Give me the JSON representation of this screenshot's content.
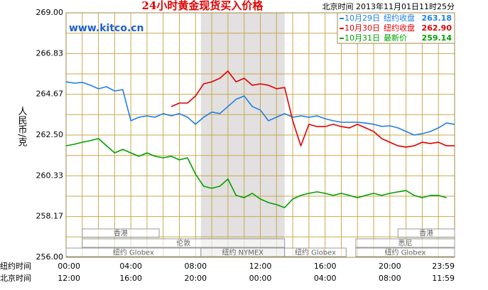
{
  "chart_data": {
    "type": "line",
    "title": "24小时黄金现货买入价格",
    "timestamp": "北京时间 2013年11月01日11时25分",
    "watermark": "www.kitco.cn",
    "y_label": "人民币/克",
    "x_row_labels": [
      "纽约时间",
      "北京时间"
    ],
    "x": [
      0,
      0.5,
      1,
      1.5,
      2,
      2.5,
      3,
      3.5,
      4,
      4.5,
      5,
      5.5,
      6,
      6.5,
      7,
      7.5,
      8,
      8.5,
      9,
      9.5,
      10,
      10.5,
      11,
      11.5,
      12,
      12.5,
      13,
      13.5,
      14,
      14.5,
      15,
      15.5,
      16,
      16.5,
      17,
      17.5,
      18,
      18.5,
      19,
      19.5,
      20,
      20.5,
      21,
      21.5,
      22,
      22.5,
      23,
      23.5,
      24
    ],
    "series": [
      {
        "name": "10月29日",
        "legend_label": "纽约收盘",
        "close": {
          "value": 263.18,
          "label": "263.18"
        },
        "color": "#1e7fe6",
        "values": [
          265.33,
          265.26,
          265.3,
          265.15,
          264.96,
          265.07,
          264.84,
          264.92,
          263.26,
          263.45,
          263.52,
          263.45,
          263.64,
          263.52,
          263.64,
          263.45,
          263.07,
          263.45,
          263.72,
          263.64,
          264.02,
          264.4,
          264.58,
          264.02,
          263.83,
          263.26,
          263.45,
          263.64,
          263.45,
          263.52,
          263.45,
          263.52,
          263.37,
          263.26,
          263.18,
          263.18,
          263.18,
          263.14,
          263.07,
          262.96,
          262.99,
          262.88,
          262.69,
          262.5,
          262.57,
          262.69,
          262.88,
          263.14,
          263.07
        ]
      },
      {
        "name": "10月30日",
        "legend_label": "纽约收盘",
        "close": {
          "value": 262.9,
          "label": "262.90"
        },
        "color": "#e00000",
        "values": [
          null,
          null,
          null,
          null,
          null,
          null,
          null,
          null,
          null,
          null,
          null,
          null,
          null,
          264.01,
          264.2,
          264.2,
          264.58,
          265.22,
          265.33,
          265.52,
          265.9,
          265.33,
          265.52,
          265.15,
          265.22,
          265.15,
          264.96,
          265.03,
          263.26,
          261.93,
          263.07,
          262.95,
          262.95,
          263.07,
          262.95,
          262.88,
          263.07,
          262.88,
          262.69,
          262.31,
          262.12,
          261.93,
          261.86,
          261.93,
          262.12,
          262.05,
          262.12,
          261.93,
          261.93
        ]
      },
      {
        "name": "10月31日",
        "legend_label": "最新价",
        "close": {
          "value": 259.14,
          "label": "259.14"
        },
        "color": "#00a000",
        "values": [
          261.93,
          262.01,
          262.12,
          262.2,
          262.31,
          261.93,
          261.55,
          261.74,
          261.55,
          261.37,
          261.55,
          261.37,
          261.29,
          261.37,
          261.18,
          261.29,
          260.42,
          259.78,
          259.67,
          259.78,
          260.16,
          259.29,
          259.17,
          259.4,
          259.1,
          258.91,
          258.8,
          258.64,
          259.1,
          259.29,
          259.4,
          259.48,
          259.4,
          259.29,
          259.4,
          259.29,
          259.17,
          259.29,
          259.4,
          259.29,
          259.4,
          259.48,
          259.55,
          259.29,
          259.17,
          259.29,
          259.29,
          259.17,
          null
        ]
      }
    ],
    "xlim": [
      0,
      24
    ],
    "ylim": [
      256,
      269
    ],
    "yticks": [
      {
        "value": 269,
        "label": "269.00"
      },
      266.83,
      264.67,
      {
        "value": 262.5,
        "label": "262.50"
      },
      260.33,
      258.17,
      {
        "value": 256,
        "label": "256.00"
      }
    ],
    "xticks": [
      {
        "value": 0,
        "label": "00:00"
      },
      {
        "value": 4,
        "label": "04:00"
      },
      {
        "value": 8,
        "label": "08:00"
      },
      {
        "value": 12,
        "label": "12:00"
      },
      {
        "value": 16,
        "label": "16:00"
      },
      {
        "value": 20,
        "label": "20:00"
      },
      {
        "value": 24,
        "label": "23:59"
      }
    ],
    "xtick_labels_beijing": [
      "12:00",
      "16:00",
      "20:00",
      "00:00",
      "04:00",
      "08:00",
      "11:59"
    ],
    "shaded_range": [
      8.33,
      13.5
    ],
    "sessions": [
      {
        "label": "香港",
        "start": 1,
        "end": 5.75
      },
      {
        "label": "伦敦",
        "start": 1,
        "end": 13.5
      },
      {
        "label": "纽约 Globex",
        "start": 0,
        "end": 8.33
      },
      {
        "label": "纽约 NYMEX",
        "start": 8.33,
        "end": 13.5
      },
      {
        "label": "纽约 Globex",
        "start": 13.5,
        "end": 17.3
      },
      {
        "label": "香港",
        "start": 20.5,
        "end": 24
      },
      {
        "label": "悉尼",
        "start": 17.9,
        "end": 24
      },
      {
        "label": "纽约 Globex",
        "start": 17.9,
        "end": 24
      }
    ],
    "grid": true
  }
}
